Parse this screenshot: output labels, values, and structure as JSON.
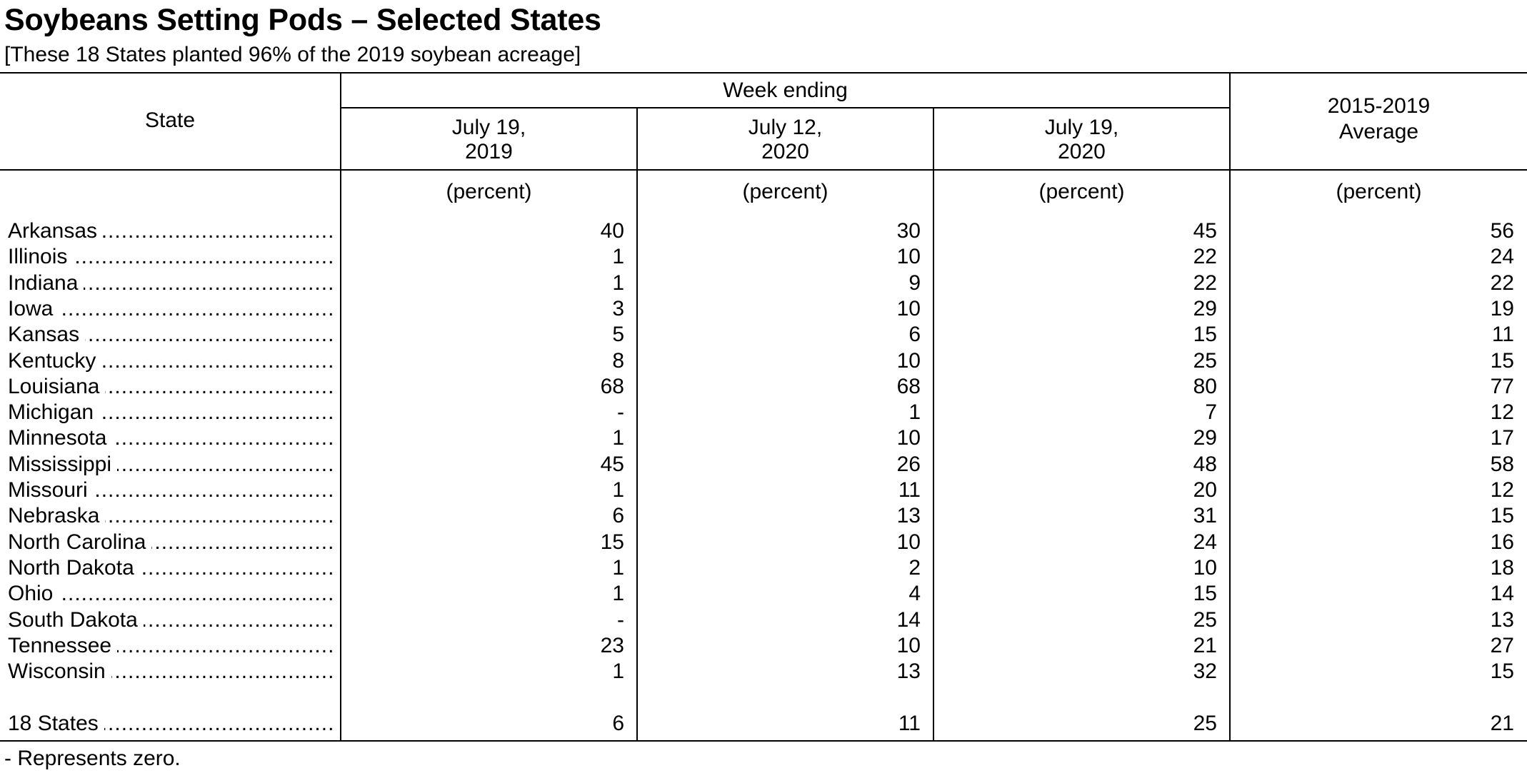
{
  "title": "Soybeans Setting Pods – Selected States",
  "subtitle": "[These 18 States planted 96% of the 2019 soybean acreage]",
  "table": {
    "header": {
      "state": "State",
      "week_ending": "Week ending",
      "col1_line1": "July 19,",
      "col1_line2": "2019",
      "col2_line1": "July 12,",
      "col2_line2": "2020",
      "col3_line1": "July 19,",
      "col3_line2": "2020",
      "col4_line1": "2015-2019",
      "col4_line2": "Average",
      "unit": "(percent)"
    },
    "rows": [
      {
        "state": "Arkansas",
        "v1": "40",
        "v2": "30",
        "v3": "45",
        "v4": "56"
      },
      {
        "state": "Illinois",
        "v1": "1",
        "v2": "10",
        "v3": "22",
        "v4": "24"
      },
      {
        "state": "Indiana",
        "v1": "1",
        "v2": "9",
        "v3": "22",
        "v4": "22"
      },
      {
        "state": "Iowa",
        "v1": "3",
        "v2": "10",
        "v3": "29",
        "v4": "19"
      },
      {
        "state": "Kansas",
        "v1": "5",
        "v2": "6",
        "v3": "15",
        "v4": "11"
      },
      {
        "state": "Kentucky",
        "v1": "8",
        "v2": "10",
        "v3": "25",
        "v4": "15"
      },
      {
        "state": "Louisiana",
        "v1": "68",
        "v2": "68",
        "v3": "80",
        "v4": "77"
      },
      {
        "state": "Michigan",
        "v1": "-",
        "v2": "1",
        "v3": "7",
        "v4": "12"
      },
      {
        "state": "Minnesota",
        "v1": "1",
        "v2": "10",
        "v3": "29",
        "v4": "17"
      },
      {
        "state": "Mississippi",
        "v1": "45",
        "v2": "26",
        "v3": "48",
        "v4": "58"
      },
      {
        "state": "Missouri",
        "v1": "1",
        "v2": "11",
        "v3": "20",
        "v4": "12"
      },
      {
        "state": "Nebraska",
        "v1": "6",
        "v2": "13",
        "v3": "31",
        "v4": "15"
      },
      {
        "state": "North Carolina",
        "v1": "15",
        "v2": "10",
        "v3": "24",
        "v4": "16"
      },
      {
        "state": "North Dakota",
        "v1": "1",
        "v2": "2",
        "v3": "10",
        "v4": "18"
      },
      {
        "state": "Ohio",
        "v1": "1",
        "v2": "4",
        "v3": "15",
        "v4": "14"
      },
      {
        "state": "South Dakota",
        "v1": "-",
        "v2": "14",
        "v3": "25",
        "v4": "13"
      },
      {
        "state": "Tennessee",
        "v1": "23",
        "v2": "10",
        "v3": "21",
        "v4": "27"
      },
      {
        "state": "Wisconsin",
        "v1": "1",
        "v2": "13",
        "v3": "32",
        "v4": "15"
      }
    ],
    "total": {
      "state": "18 States",
      "v1": "6",
      "v2": "11",
      "v3": "25",
      "v4": "21"
    }
  },
  "footnote": "- Represents zero."
}
